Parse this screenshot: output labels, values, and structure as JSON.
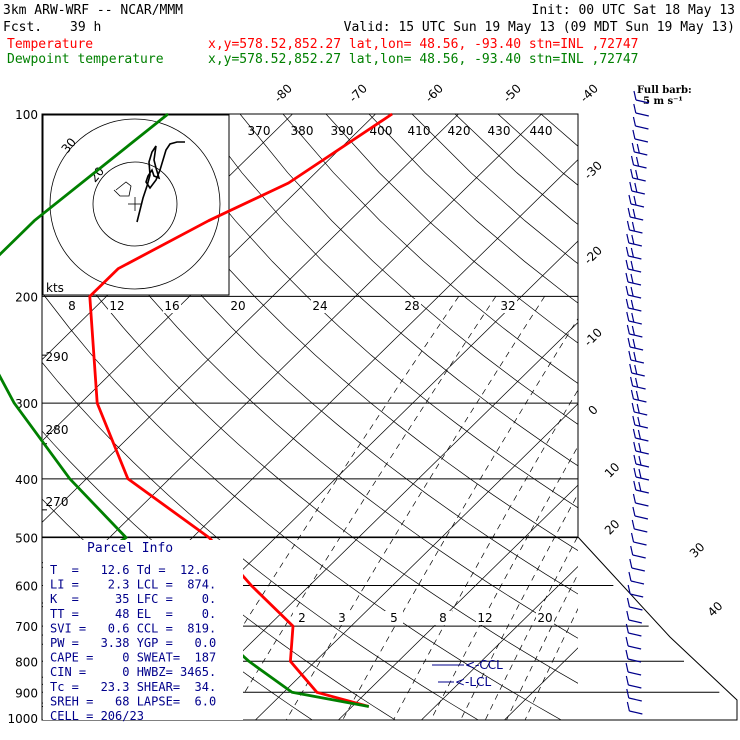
{
  "header": {
    "model": "3km ARW-WRF -- NCAR/MMM",
    "fcst_label": "Fcst.",
    "fcst_value": "39 h",
    "init": "Init: 00 UTC Sat 18 May 13",
    "valid": "Valid: 15 UTC Sun 19 May 13 (09 MDT Sun 19 May 13)"
  },
  "legend": [
    {
      "name": "Temperature",
      "color": "#ff0000",
      "info": "x,y=578.52,852.27    lat,lon= 48.56, -93.40    stn=INL ,72747"
    },
    {
      "name": "Dewpoint temperature",
      "color": "#008000",
      "info": "x,y=578.52,852.27    lat,lon= 48.56, -93.40    stn=INL ,72747"
    }
  ],
  "barb_key": {
    "line1": "Full barb:",
    "line2": "5 m s⁻¹"
  },
  "hodograph": {
    "rings": [
      "20",
      "30"
    ],
    "units": "kts"
  },
  "parcel_info": {
    "title": "Parcel Info",
    "rows": [
      "T  =   12.6 Td =  12.6",
      "LI =    2.3 LCL =  874.",
      "K  =     35 LFC =    0.",
      "TT =     48 EL  =    0.",
      "SVI =   0.6 CCL =  819.",
      "PW =   3.38 YGP =   0.0",
      "CAPE =    0 SWEAT=  187",
      "CIN =     0 HWBZ= 3465.",
      "Tc =   23.3 SHEAR=  34.",
      "SREH =   68 LAPSE=  6.0",
      "CELL = 206/23"
    ]
  },
  "level_labels": {
    "ccl": "<-CCL",
    "lcl": "<-LCL"
  },
  "chart_data": {
    "type": "line",
    "ylabel": "",
    "y_scale": "log-pressure",
    "pressure_ticks": [
      "100",
      "200",
      "300",
      "400",
      "500",
      "600",
      "700",
      "800",
      "900",
      "1000"
    ],
    "isotherm_labels": [
      "-80",
      "-70",
      "-60",
      "-50",
      "-40",
      "-30",
      "-20",
      "-10",
      "0",
      "10",
      "20",
      "30",
      "40"
    ],
    "theta_labels": [
      "370",
      "380",
      "390",
      "400",
      "410",
      "420",
      "430",
      "440",
      "290",
      "280",
      "270"
    ],
    "mixing_ratio_labels": [
      "8",
      "12",
      "16",
      "20",
      "24",
      "28",
      "32",
      "2",
      "3",
      "5",
      "8",
      "12",
      "20"
    ],
    "series": [
      {
        "name": "Temperature",
        "color": "#ff0000",
        "points": [
          [
            -58,
            100
          ],
          [
            -62,
            130
          ],
          [
            -67,
            150
          ],
          [
            -72,
            180
          ],
          [
            -72,
            200
          ],
          [
            -58,
            300
          ],
          [
            -45,
            400
          ],
          [
            -28,
            500
          ],
          [
            -17,
            600
          ],
          [
            -7,
            700
          ],
          [
            -3,
            800
          ],
          [
            4,
            900
          ],
          [
            12,
            950
          ]
        ]
      },
      {
        "name": "Dewpoint temperature",
        "color": "#008000",
        "points": [
          [
            -85,
            100
          ],
          [
            -88,
            150
          ],
          [
            -88,
            200
          ],
          [
            -68,
            300
          ],
          [
            -52,
            400
          ],
          [
            -38,
            500
          ],
          [
            -41,
            600
          ],
          [
            -17,
            700
          ],
          [
            -8,
            800
          ],
          [
            1,
            900
          ],
          [
            12,
            950
          ]
        ]
      }
    ]
  }
}
